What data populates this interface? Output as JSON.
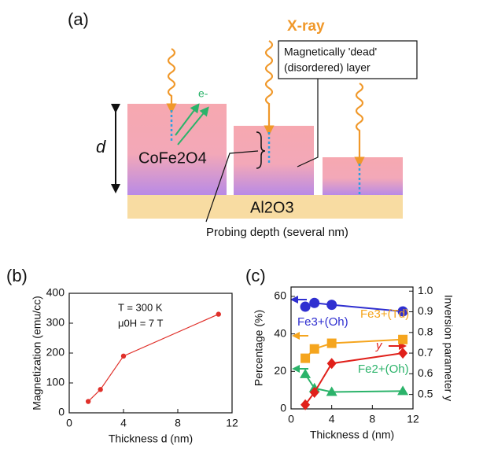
{
  "diagram": {
    "panel": "(a)",
    "xray": "X-ray",
    "electron": "e-",
    "thickness": "d",
    "film": "CoFe2O4",
    "substrate": "Al2O3",
    "dead_layer": [
      "Magnetically 'dead'",
      "(disordered) layer"
    ],
    "probing": "Probing depth (several nm)"
  },
  "chart_data": [
    {
      "type": "line",
      "panel": "(b)",
      "xlabel": "Thickness d (nm)",
      "ylabel": "Magnetization (emu/cc)",
      "annotations": [
        "T = 300 K",
        "μ0H = 7 T"
      ],
      "x": [
        1.4,
        2.3,
        4,
        11
      ],
      "values": [
        38,
        78,
        190,
        330
      ],
      "color": "#e0302a",
      "marker": "circle",
      "xlim": [
        0,
        12
      ],
      "xticks": [
        0,
        4,
        8,
        12
      ],
      "ylim": [
        0,
        400
      ],
      "yticks": [
        0,
        100,
        200,
        300,
        400
      ]
    },
    {
      "type": "line",
      "panel": "(c)",
      "xlabel": "Thickness d (nm)",
      "ylabel": "Percentage (%)",
      "y2label": "Inversion parameter y",
      "x": [
        1.4,
        2.3,
        4,
        11
      ],
      "series": [
        {
          "name": "Fe3+(Oh)",
          "color": "#2f2fd0",
          "marker": "circle",
          "values": [
            54.5,
            56.5,
            55.5,
            52
          ]
        },
        {
          "name": "Fe3+(Td)",
          "color": "#f5a51e",
          "marker": "square",
          "values": [
            27,
            32,
            35,
            37
          ]
        },
        {
          "name": "Fe2+(Oh)",
          "color": "#2bb36a",
          "marker": "triangle",
          "values": [
            18.5,
            11,
            9,
            9.5
          ]
        },
        {
          "name": "y",
          "color": "#e0201a",
          "marker": "diamond",
          "axis": "y2",
          "values": [
            0.45,
            0.51,
            0.65,
            0.7
          ]
        }
      ],
      "xlim": [
        0,
        12
      ],
      "xticks": [
        0,
        4,
        8,
        12
      ],
      "ylim": [
        0,
        65
      ],
      "yticks": [
        0,
        20,
        40,
        60
      ],
      "y2lim": [
        0.43,
        1.02
      ],
      "y2ticks": [
        0.5,
        0.6,
        0.7,
        0.8,
        0.9,
        {
          "value": 1,
          "label": "1.0"
        }
      ]
    }
  ]
}
